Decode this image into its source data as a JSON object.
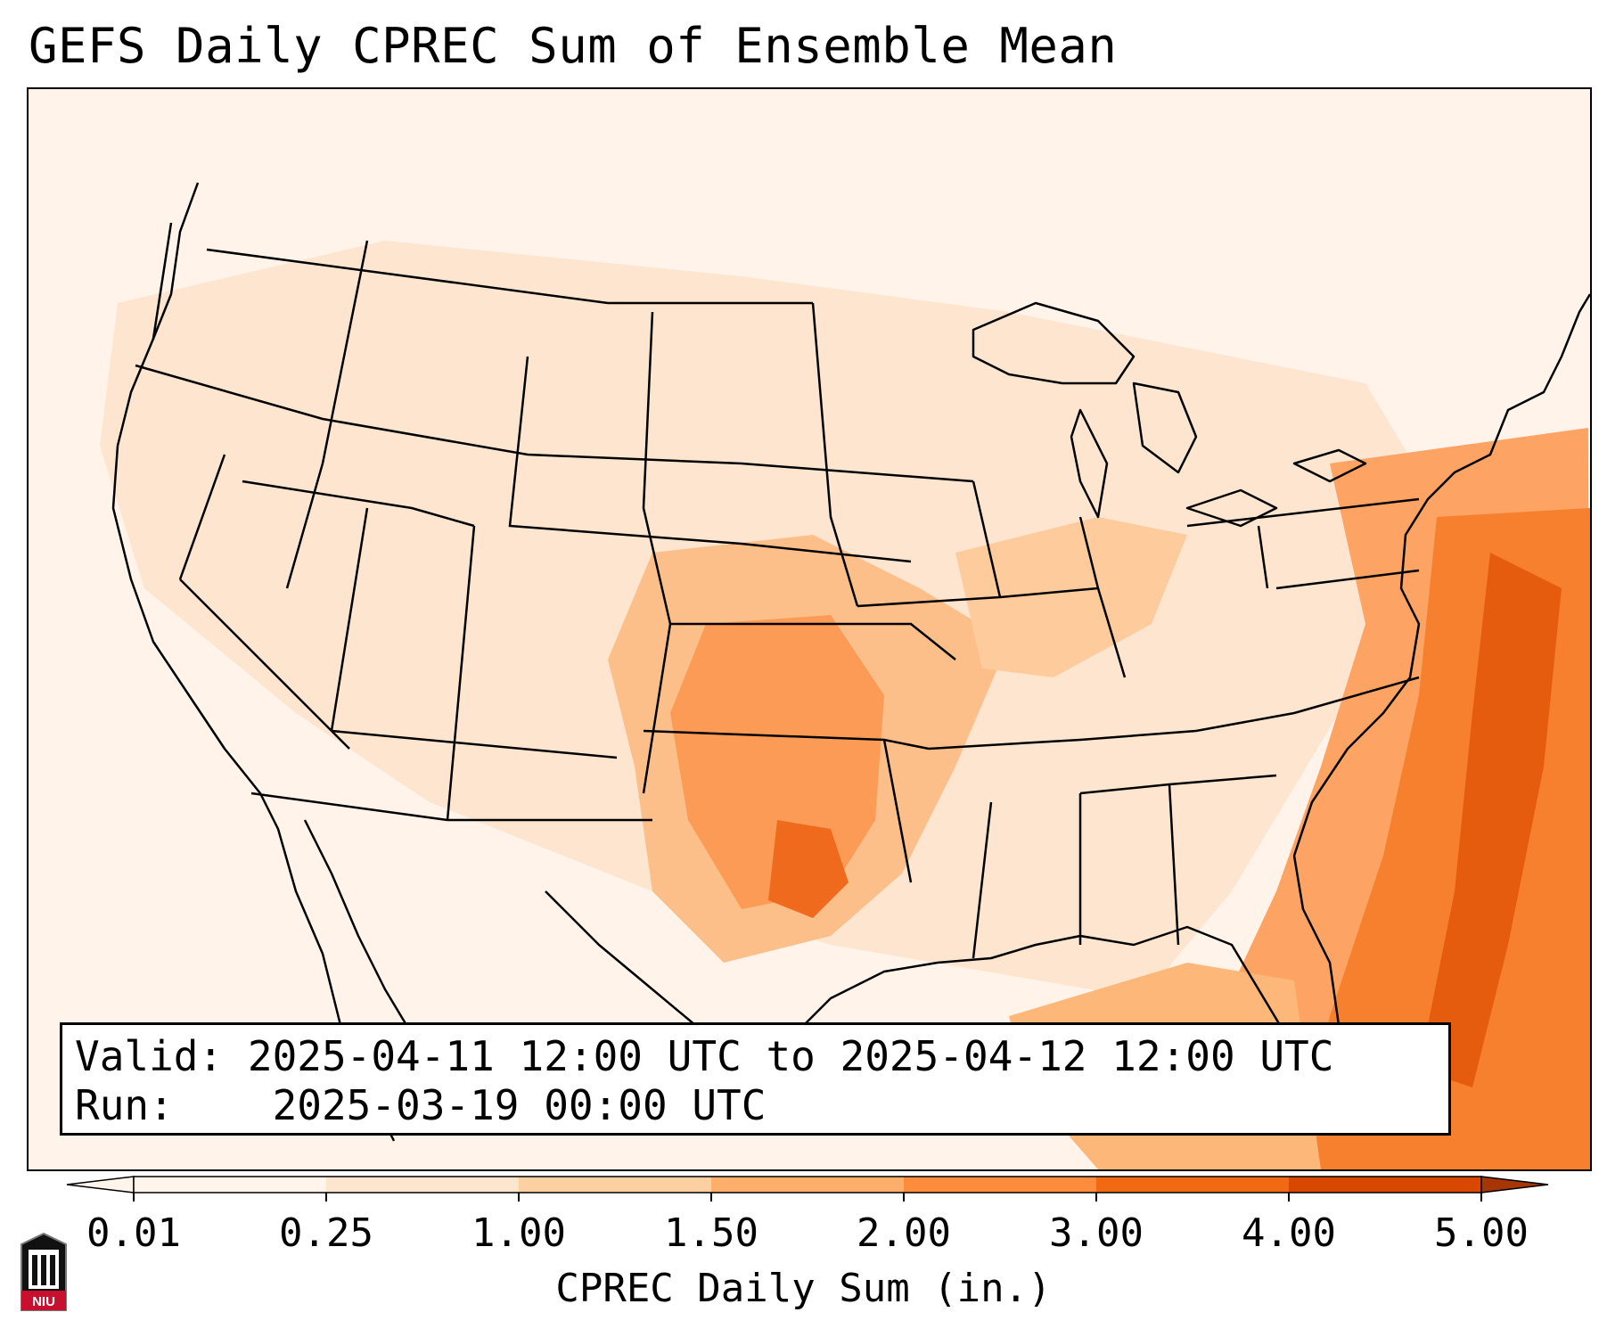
{
  "title": "GEFS Daily CPREC Sum of Ensemble Mean",
  "info": {
    "valid_label": "Valid:",
    "valid_value": "2025-04-11 12:00 UTC to 2025-04-12 12:00 UTC",
    "run_label": "Run:",
    "run_value": "2025-03-19 00:00 UTC"
  },
  "colorbar": {
    "label": "CPREC Daily Sum (in.)",
    "ticks": [
      "0.01",
      "0.25",
      "1.00",
      "1.50",
      "2.00",
      "3.00",
      "4.00",
      "5.00"
    ],
    "colors": [
      "#fff5eb",
      "#fee6ce",
      "#fdd0a2",
      "#fdae6b",
      "#fd8d3c",
      "#f16913",
      "#d94801",
      "#a63603"
    ],
    "extend": "both"
  },
  "logo": {
    "text": "NIU"
  }
}
